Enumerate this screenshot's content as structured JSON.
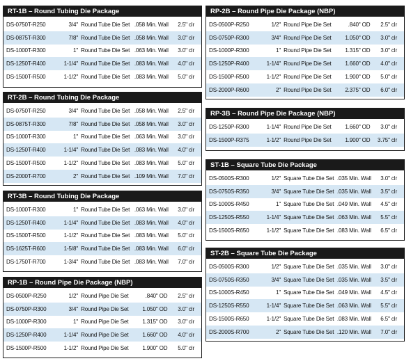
{
  "panels": [
    {
      "title": "RT-1B – Round Tubing Die Package",
      "rows": [
        [
          "DS-0750T-R250",
          "3/4\"",
          "Round Tube Die Set",
          ".058 Min. Wall",
          "2.5\" clr"
        ],
        [
          "DS-0875T-R300",
          "7/8\"",
          "Round Tube Die Set",
          ".058 Min. Wall",
          "3.0\" clr"
        ],
        [
          "DS-1000T-R300",
          "1\"",
          "Round Tube Die Set",
          ".063 Min. Wall",
          "3.0\" clr"
        ],
        [
          "DS-1250T-R400",
          "1-1/4\"",
          "Round Tube Die Set",
          ".083 Min. Wall",
          "4.0\" clr"
        ],
        [
          "DS-1500T-R500",
          "1-1/2\"",
          "Round Tube Die Set",
          ".083 Min. Wall",
          "5.0\" clr"
        ]
      ]
    },
    {
      "title": "RT-2B – Round Tubing Die Package",
      "rows": [
        [
          "DS-0750T-R250",
          "3/4\"",
          "Round Tube Die Set",
          ".058 Min. Wall",
          "2.5\" clr"
        ],
        [
          "DS-0875T-R300",
          "7/8\"",
          "Round Tube Die Set",
          ".058 Min. Wall",
          "3.0\" clr"
        ],
        [
          "DS-1000T-R300",
          "1\"",
          "Round Tube Die Set",
          ".063 Min. Wall",
          "3.0\" clr"
        ],
        [
          "DS-1250T-R400",
          "1-1/4\"",
          "Round Tube Die Set",
          ".083 Min. Wall",
          "4.0\" clr"
        ],
        [
          "DS-1500T-R500",
          "1-1/2\"",
          "Round Tube Die Set",
          ".083 Min. Wall",
          "5.0\" clr"
        ],
        [
          "DS-2000T-R700",
          "2\"",
          "Round Tube Die Set",
          ".109 Min. Wall",
          "7.0\" clr"
        ]
      ]
    },
    {
      "title": "RT-3B – Round Tubing Die Package",
      "rows": [
        [
          "DS-1000T-R300",
          "1\"",
          "Round Tube Die Set",
          ".063 Min. Wall",
          "3.0\" clr"
        ],
        [
          "DS-1250T-R400",
          "1-1/4\"",
          "Round Tube Die Set",
          ".083 Min. Wall",
          "4.0\" clr"
        ],
        [
          "DS-1500T-R500",
          "1-1/2\"",
          "Round Tube Die Set",
          ".083 Min. Wall",
          "5.0\" clr"
        ],
        [
          "DS-1625T-R600",
          "1-5/8\"",
          "Round Tube Die Set",
          ".083 Min. Wall",
          "6.0\" clr"
        ],
        [
          "DS-1750T-R700",
          "1-3/4\"",
          "Round Tube Die Set",
          ".083 Min. Wall",
          "7.0\" clr"
        ]
      ]
    },
    {
      "title": "RP-1B – Round Pipe Die Package (NBP)",
      "rows": [
        [
          "DS-0500P-R250",
          "1/2\"",
          "Round Pipe Die Set",
          ".840\" OD",
          "2.5\" clr"
        ],
        [
          "DS-0750P-R300",
          "3/4\"",
          "Round Pipe Die Set",
          "1.050\" OD",
          "3.0\" clr"
        ],
        [
          "DS-1000P-R300",
          "1\"",
          "Round Pipe Die Set",
          "1.315\" OD",
          "3.0\" clr"
        ],
        [
          "DS-1250P-R400",
          "1-1/4\"",
          "Round Pipe Die Set",
          "1.660\" OD",
          "4.0\" clr"
        ],
        [
          "DS-1500P-R500",
          "1-1/2\"",
          "Round Pipe Die Set",
          "1.900\" OD",
          "5.0\" clr"
        ]
      ]
    },
    {
      "title": "RP-2B – Round Pipe Die Package (NBP)",
      "rows": [
        [
          "DS-0500P-R250",
          "1/2\"",
          "Round Pipe Die Set",
          ".840\" OD",
          "2.5\" clr"
        ],
        [
          "DS-0750P-R300",
          "3/4\"",
          "Round Pipe Die Set",
          "1.050\" OD",
          "3.0\" clr"
        ],
        [
          "DS-1000P-R300",
          "1\"",
          "Round Pipe Die Set",
          "1.315\" OD",
          "3.0\" clr"
        ],
        [
          "DS-1250P-R400",
          "1-1/4\"",
          "Round Pipe Die Set",
          "1.660\" OD",
          "4.0\" clr"
        ],
        [
          "DS-1500P-R500",
          "1-1/2\"",
          "Round Pipe Die Set",
          "1.900\" OD",
          "5.0\" clr"
        ],
        [
          "DS-2000P-R600",
          "2\"",
          "Round Pipe Die Set",
          "2.375\" OD",
          "6.0\" clr"
        ]
      ]
    },
    {
      "title": "RP-3B – Round Pipe Die Package (NBP)",
      "rows": [
        [
          "DS-1250P-R300",
          "1-1/4\"",
          "Round Pipe Die Set",
          "1.660\" OD",
          "3.0\" clr"
        ],
        [
          "DS-1500P-R375",
          "1-1/2\"",
          "Round Pipe Die Set",
          "1.900\" OD",
          "3.75\" clr"
        ]
      ]
    },
    {
      "title": "ST-1B – Square Tube Die Package",
      "rows": [
        [
          "DS-0500S-R300",
          "1/2\"",
          "Square Tube Die Set",
          ".035 Min. Wall",
          "3.0\" clr"
        ],
        [
          "DS-0750S-R350",
          "3/4\"",
          "Square Tube Die Set",
          ".035 Min. Wall",
          "3.5\" clr"
        ],
        [
          "DS-1000S-R450",
          "1\"",
          "Square Tube Die Set",
          ".049 Min. Wall",
          "4.5\" clr"
        ],
        [
          "DS-1250S-R550",
          "1-1/4\"",
          "Square Tube Die Set",
          ".063 Min. Wall",
          "5.5\" clr"
        ],
        [
          "DS-1500S-R650",
          "1-1/2\"",
          "Square Tube Die Set",
          ".083 Min. Wall",
          "6.5\" clr"
        ]
      ]
    },
    {
      "title": "ST-2B – Square Tube Die Package",
      "rows": [
        [
          "DS-0500S-R300",
          "1/2\"",
          "Square Tube Die Set",
          ".035 Min. Wall",
          "3.0\" clr"
        ],
        [
          "DS-0750S-R350",
          "3/4\"",
          "Square Tube Die Set",
          ".035 Min. Wall",
          "3.5\" clr"
        ],
        [
          "DS-1000S-R450",
          "1\"",
          "Square Tube Die Set",
          ".049 Min. Wall",
          "4.5\" clr"
        ],
        [
          "DS-1250S-R550",
          "1-1/4\"",
          "Square Tube Die Set",
          ".063 Min. Wall",
          "5.5\" clr"
        ],
        [
          "DS-1500S-R650",
          "1-1/2\"",
          "Square Tube Die Set",
          ".083 Min. Wall",
          "6.5\" clr"
        ],
        [
          "DS-2000S-R700",
          "2\"",
          "Square Tube Die Set",
          ".120 Min. Wall",
          "7.0\" clr"
        ]
      ]
    }
  ],
  "colors": {
    "header_background": "#1a1a1a",
    "header_text": "#ffffff",
    "stripe_row": "#d6e7f4"
  }
}
